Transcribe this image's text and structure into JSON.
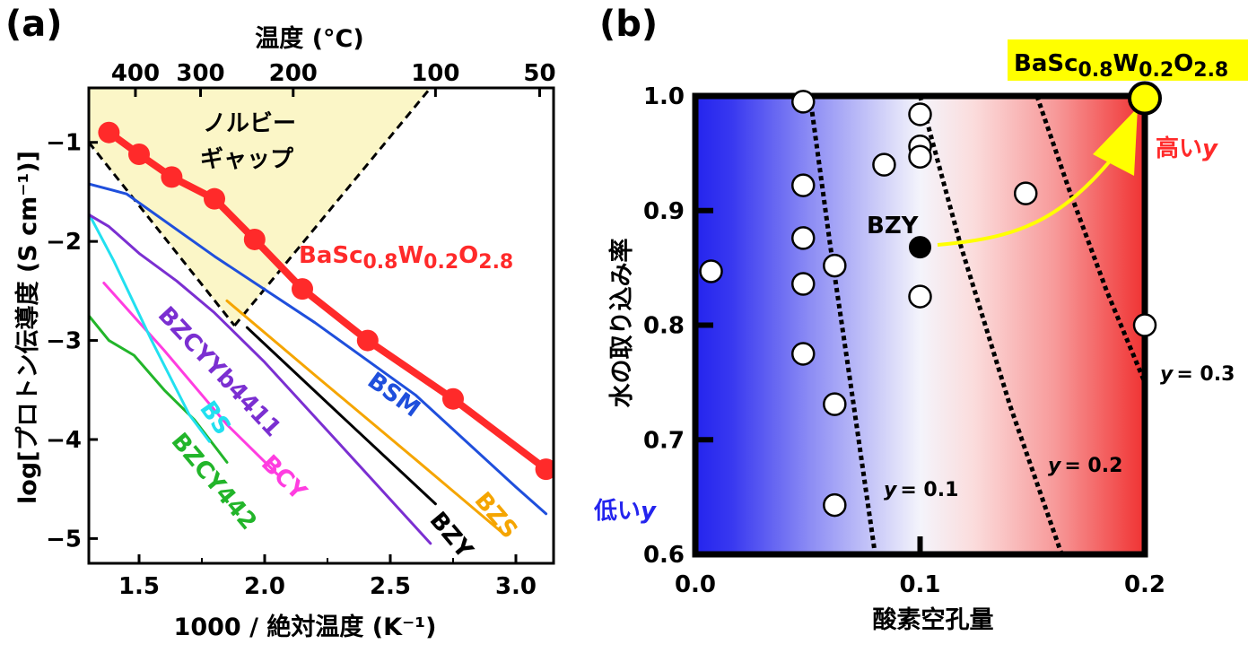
{
  "figure": {
    "panel_a_label": "(a)",
    "panel_b_label": "(b)"
  },
  "colors": {
    "red": "#ff2a2a",
    "blue_series": "#1f4fdc",
    "purple": "#7b2fd1",
    "cyan": "#22e0f0",
    "magenta": "#ff3de0",
    "green": "#22b52a",
    "orange": "#f5a500",
    "black": "#000000",
    "gap_fill": "#fbf6c7",
    "highlight_yellow": "#ffff00",
    "dark_blue": "#2424ee"
  },
  "chart_data": [
    {
      "type": "line",
      "panel": "(a)",
      "xlabel": "1000 / 絶対温度 (K⁻¹)",
      "ylabel": "log[プロトン伝導度 (S cm⁻¹)]",
      "top_xlabel": "温度 (°C)",
      "xlim": [
        1.3,
        3.15
      ],
      "ylim": [
        -5.25,
        -0.45
      ],
      "xticks": [
        "1.5",
        "2.0",
        "2.5",
        "3.0"
      ],
      "yticks": [
        "−1",
        "−2",
        "−3",
        "−4",
        "−5"
      ],
      "top_ticks": [
        "400",
        "300",
        "200",
        "100",
        "50"
      ],
      "top_tick_celsius": [
        400,
        300,
        200,
        100,
        50
      ],
      "shaded_region_label": [
        "ノルビー",
        "ギャップ"
      ],
      "series": [
        {
          "name": "BaSc0.8W0.2O2.8",
          "label_parts": [
            "BaSc",
            "0.8",
            "W",
            "0.2",
            "O",
            "2.8"
          ],
          "color": "#ff2a2a",
          "markers": true,
          "x": [
            1.38,
            1.5,
            1.63,
            1.8,
            1.96,
            2.15,
            2.41,
            2.75,
            3.12
          ],
          "y": [
            -0.9,
            -1.12,
            -1.35,
            -1.57,
            -1.98,
            -2.48,
            -3.0,
            -3.59,
            -4.3
          ]
        },
        {
          "name": "BSM",
          "color": "#1f4fdc",
          "x": [
            1.3,
            1.45,
            1.8,
            2.2,
            2.6,
            3.0,
            3.12
          ],
          "y": [
            -1.42,
            -1.52,
            -2.15,
            -2.82,
            -3.55,
            -4.48,
            -4.75
          ]
        },
        {
          "name": "BZS",
          "color": "#f5a500",
          "x": [
            1.85,
            2.2,
            2.6,
            2.95
          ],
          "y": [
            -2.6,
            -3.35,
            -4.2,
            -4.95
          ]
        },
        {
          "name": "BZY",
          "color": "#000000",
          "x": [
            1.93,
            2.3,
            2.68
          ],
          "y": [
            -2.87,
            -3.75,
            -4.65
          ]
        },
        {
          "name": "BZCYYb4411",
          "color": "#7b2fd1",
          "x": [
            1.3,
            1.38,
            1.5,
            1.65,
            1.8,
            2.0,
            2.3,
            2.66
          ],
          "y": [
            -1.73,
            -1.85,
            -2.12,
            -2.4,
            -2.72,
            -3.22,
            -4.05,
            -5.05
          ]
        },
        {
          "name": "BS",
          "color": "#22e0f0",
          "x": [
            1.3,
            1.4,
            1.55,
            1.7,
            1.78
          ],
          "y": [
            -1.72,
            -2.2,
            -3.0,
            -3.75,
            -4.02
          ]
        },
        {
          "name": "BCY",
          "color": "#ff3de0",
          "x": [
            1.36,
            1.6,
            1.85,
            2.05
          ],
          "y": [
            -2.42,
            -3.1,
            -3.85,
            -4.35
          ]
        },
        {
          "name": "BZCY442",
          "color": "#22b52a",
          "x": [
            1.3,
            1.38,
            1.48,
            1.6,
            1.72,
            1.85
          ],
          "y": [
            -2.75,
            -3.0,
            -3.15,
            -3.5,
            -3.8,
            -4.23
          ]
        }
      ]
    },
    {
      "type": "scatter",
      "panel": "(b)",
      "xlabel": "酸素空孔量",
      "ylabel": "水の取り込み率",
      "xlim": [
        0.0,
        0.2
      ],
      "ylim": [
        0.6,
        1.0
      ],
      "xticks": [
        "0.0",
        "0.1",
        "0.2"
      ],
      "yticks": [
        "0.6",
        "0.7",
        "0.8",
        "0.9",
        "1.0"
      ],
      "colormap": "blue (low y) to white to red (high y)",
      "low_label": [
        "低い",
        "y"
      ],
      "high_label": [
        "高い",
        "y"
      ],
      "contours": [
        {
          "label_prefix": "y",
          "label_value": "= 0.1",
          "value": 0.1
        },
        {
          "label_prefix": "y",
          "label_value": "= 0.2",
          "value": 0.2
        },
        {
          "label_prefix": "y",
          "label_value": "= 0.3",
          "value": 0.3
        }
      ],
      "points": [
        {
          "x": 0.007,
          "y": 0.847
        },
        {
          "x": 0.048,
          "y": 0.995
        },
        {
          "x": 0.048,
          "y": 0.922
        },
        {
          "x": 0.048,
          "y": 0.876
        },
        {
          "x": 0.048,
          "y": 0.836
        },
        {
          "x": 0.048,
          "y": 0.775
        },
        {
          "x": 0.062,
          "y": 0.852
        },
        {
          "x": 0.062,
          "y": 0.731
        },
        {
          "x": 0.062,
          "y": 0.643
        },
        {
          "x": 0.084,
          "y": 0.94
        },
        {
          "x": 0.1,
          "y": 0.984
        },
        {
          "x": 0.1,
          "y": 0.956
        },
        {
          "x": 0.1,
          "y": 0.947
        },
        {
          "x": 0.1,
          "y": 0.825
        },
        {
          "x": 0.147,
          "y": 0.915
        },
        {
          "x": 0.2,
          "y": 0.8
        }
      ],
      "highlight_bzy": {
        "name": "BZY",
        "x": 0.1,
        "y": 0.868
      },
      "highlight_target": {
        "label_parts": [
          "BaSc",
          "0.8",
          "W",
          "0.2",
          "O",
          "2.8"
        ],
        "x": 0.2,
        "y": 0.998
      }
    }
  ]
}
